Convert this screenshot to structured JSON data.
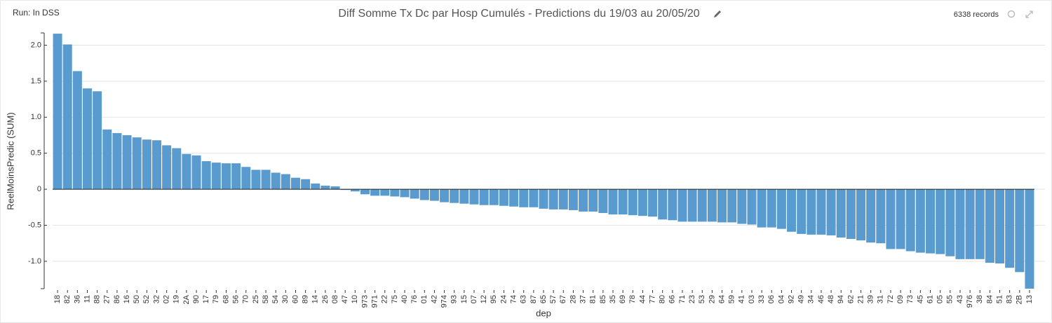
{
  "header": {
    "run": "Run: In DSS",
    "records": "6338 records"
  },
  "chart_data": {
    "type": "bar",
    "title": "Diff Somme Tx Dc par Hosp Cumulés - Predictions du 19/03 au 20/05/20",
    "x_label": "dep",
    "y_label": "ReelMoinsPredic (SUM)",
    "color": "#5a9bcf",
    "grid": true,
    "ylim": [
      -1.38,
      2.17
    ],
    "yticks": [
      {
        "value": -1.0,
        "label": "-1.0"
      },
      -0.5,
      0,
      0.5,
      {
        "value": 1.0,
        "label": "1.0"
      },
      1.5,
      {
        "value": 2.0,
        "label": "2.0"
      }
    ],
    "categories": [
      "18",
      "82",
      "36",
      "11",
      "88",
      "27",
      "86",
      "16",
      "50",
      "52",
      "32",
      "02",
      "19",
      "2A",
      "90",
      "17",
      "79",
      "68",
      "56",
      "70",
      "25",
      "58",
      "54",
      "30",
      "60",
      "89",
      "14",
      "26",
      "08",
      "47",
      "10",
      "973",
      "971",
      "22",
      "75",
      "40",
      "76",
      "01",
      "42",
      "974",
      "93",
      "15",
      "07",
      "12",
      "95",
      "24",
      "74",
      "63",
      "87",
      "65",
      "57",
      "67",
      "28",
      "37",
      "81",
      "85",
      "35",
      "69",
      "78",
      "44",
      "77",
      "80",
      "66",
      "71",
      "23",
      "53",
      "29",
      "64",
      "59",
      "41",
      "03",
      "33",
      "06",
      "04",
      "92",
      "49",
      "34",
      "46",
      "48",
      "94",
      "62",
      "21",
      "39",
      "31",
      "72",
      "09",
      "73",
      "45",
      "61",
      "05",
      "55",
      "43",
      "976",
      "38",
      "84",
      "51",
      "83",
      "2B",
      "13"
    ],
    "values": [
      2.16,
      2.01,
      1.64,
      1.4,
      1.36,
      0.83,
      0.78,
      0.75,
      0.72,
      0.69,
      0.68,
      0.61,
      0.57,
      0.49,
      0.47,
      0.39,
      0.37,
      0.36,
      0.36,
      0.31,
      0.27,
      0.27,
      0.23,
      0.21,
      0.16,
      0.14,
      0.08,
      0.05,
      0.04,
      -0.01,
      -0.03,
      -0.07,
      -0.09,
      -0.09,
      -0.1,
      -0.11,
      -0.13,
      -0.15,
      -0.16,
      -0.18,
      -0.19,
      -0.2,
      -0.21,
      -0.22,
      -0.22,
      -0.23,
      -0.24,
      -0.25,
      -0.25,
      -0.27,
      -0.28,
      -0.28,
      -0.29,
      -0.31,
      -0.31,
      -0.33,
      -0.35,
      -0.35,
      -0.36,
      -0.37,
      -0.38,
      -0.42,
      -0.43,
      -0.45,
      -0.45,
      -0.45,
      -0.45,
      -0.46,
      -0.46,
      -0.48,
      -0.49,
      -0.53,
      -0.53,
      -0.55,
      -0.59,
      -0.62,
      -0.63,
      -0.63,
      -0.64,
      -0.67,
      -0.69,
      -0.71,
      -0.74,
      -0.75,
      -0.83,
      -0.83,
      -0.86,
      -0.88,
      -0.89,
      -0.9,
      -0.93,
      -0.97,
      -0.97,
      -0.97,
      -1.02,
      -1.03,
      -1.09,
      -1.15,
      -1.38
    ]
  }
}
